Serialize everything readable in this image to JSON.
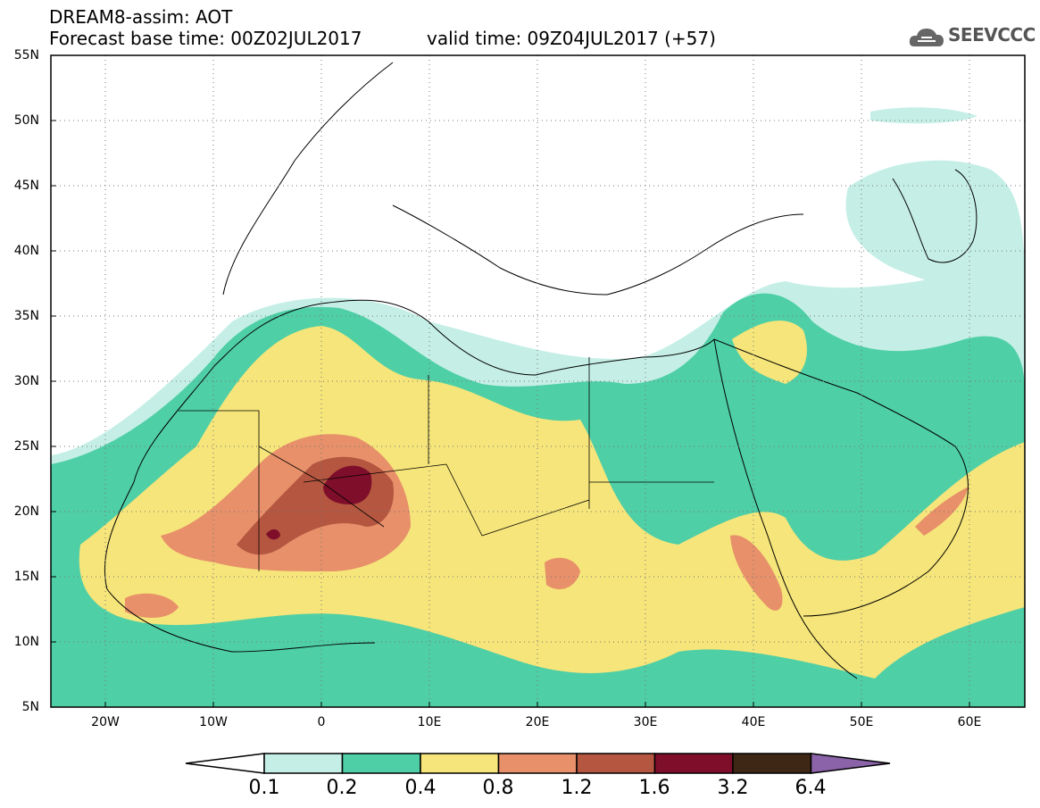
{
  "title": {
    "line1": "DREAM8-assim: AOT",
    "line2": "Forecast base time: 00Z02JUL2017",
    "valid": "valid time: 09Z04JUL2017 (+57)"
  },
  "logo": {
    "text": "SEEVCCC",
    "icon": "cloud-logo-icon"
  },
  "map": {
    "lat_labels": [
      "55N",
      "50N",
      "45N",
      "40N",
      "35N",
      "30N",
      "25N",
      "20N",
      "15N",
      "10N",
      "5N"
    ],
    "lon_labels": [
      "20W",
      "10W",
      "0",
      "10E",
      "20E",
      "30E",
      "40E",
      "50E",
      "60E"
    ],
    "lat_range": [
      5,
      55
    ],
    "lon_range": [
      -25,
      65
    ],
    "grid": "dotted",
    "field": "AOT"
  },
  "colorbar": {
    "levels": [
      "0.1",
      "0.2",
      "0.4",
      "0.8",
      "1.2",
      "1.6",
      "3.2",
      "6.4"
    ],
    "colors": [
      "#ffffff",
      "#c5efe6",
      "#4fcfa6",
      "#f6e57a",
      "#e7906a",
      "#b45640",
      "#7e0e2a",
      "#3e2714",
      "#8a63a8"
    ]
  }
}
